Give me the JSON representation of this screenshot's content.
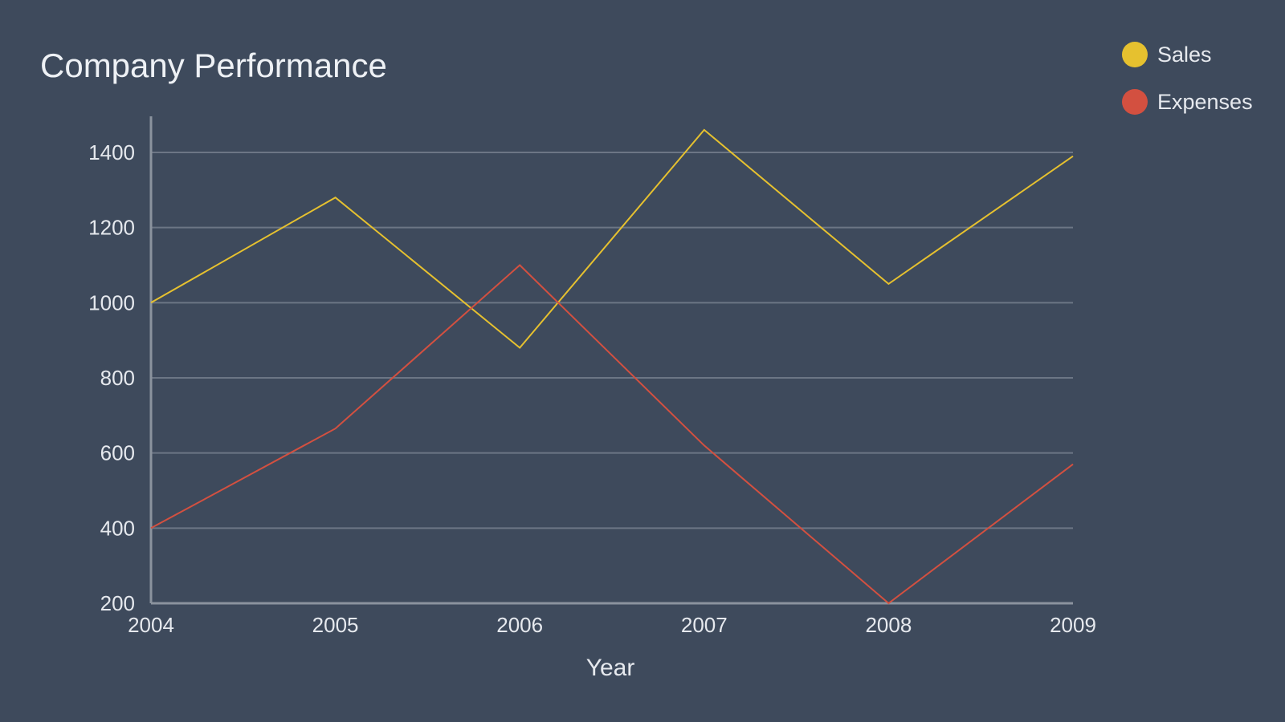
{
  "chart_data": {
    "type": "line",
    "title": "Company Performance",
    "xlabel": "Year",
    "ylabel": "",
    "categories": [
      "2004",
      "2005",
      "2006",
      "2007",
      "2008",
      "2009"
    ],
    "x_tick_labels": [
      "2004",
      "2005",
      "2006",
      "2007",
      "2008",
      "2009"
    ],
    "ylim": [
      200,
      1400
    ],
    "y_ticks": [
      200,
      400,
      600,
      800,
      1000,
      1200,
      1400
    ],
    "y_tick_labels": [
      "200",
      "400",
      "600",
      "800",
      "1000",
      "1200",
      "1400"
    ],
    "grid": true,
    "legend_position": "top-right",
    "series": [
      {
        "name": "Sales",
        "color": "#e6c12f",
        "values": [
          1000,
          1280,
          880,
          1460,
          1050,
          1390
        ]
      },
      {
        "name": "Expenses",
        "color": "#d35040",
        "values": [
          400,
          665,
          1100,
          620,
          200,
          570
        ]
      }
    ]
  }
}
